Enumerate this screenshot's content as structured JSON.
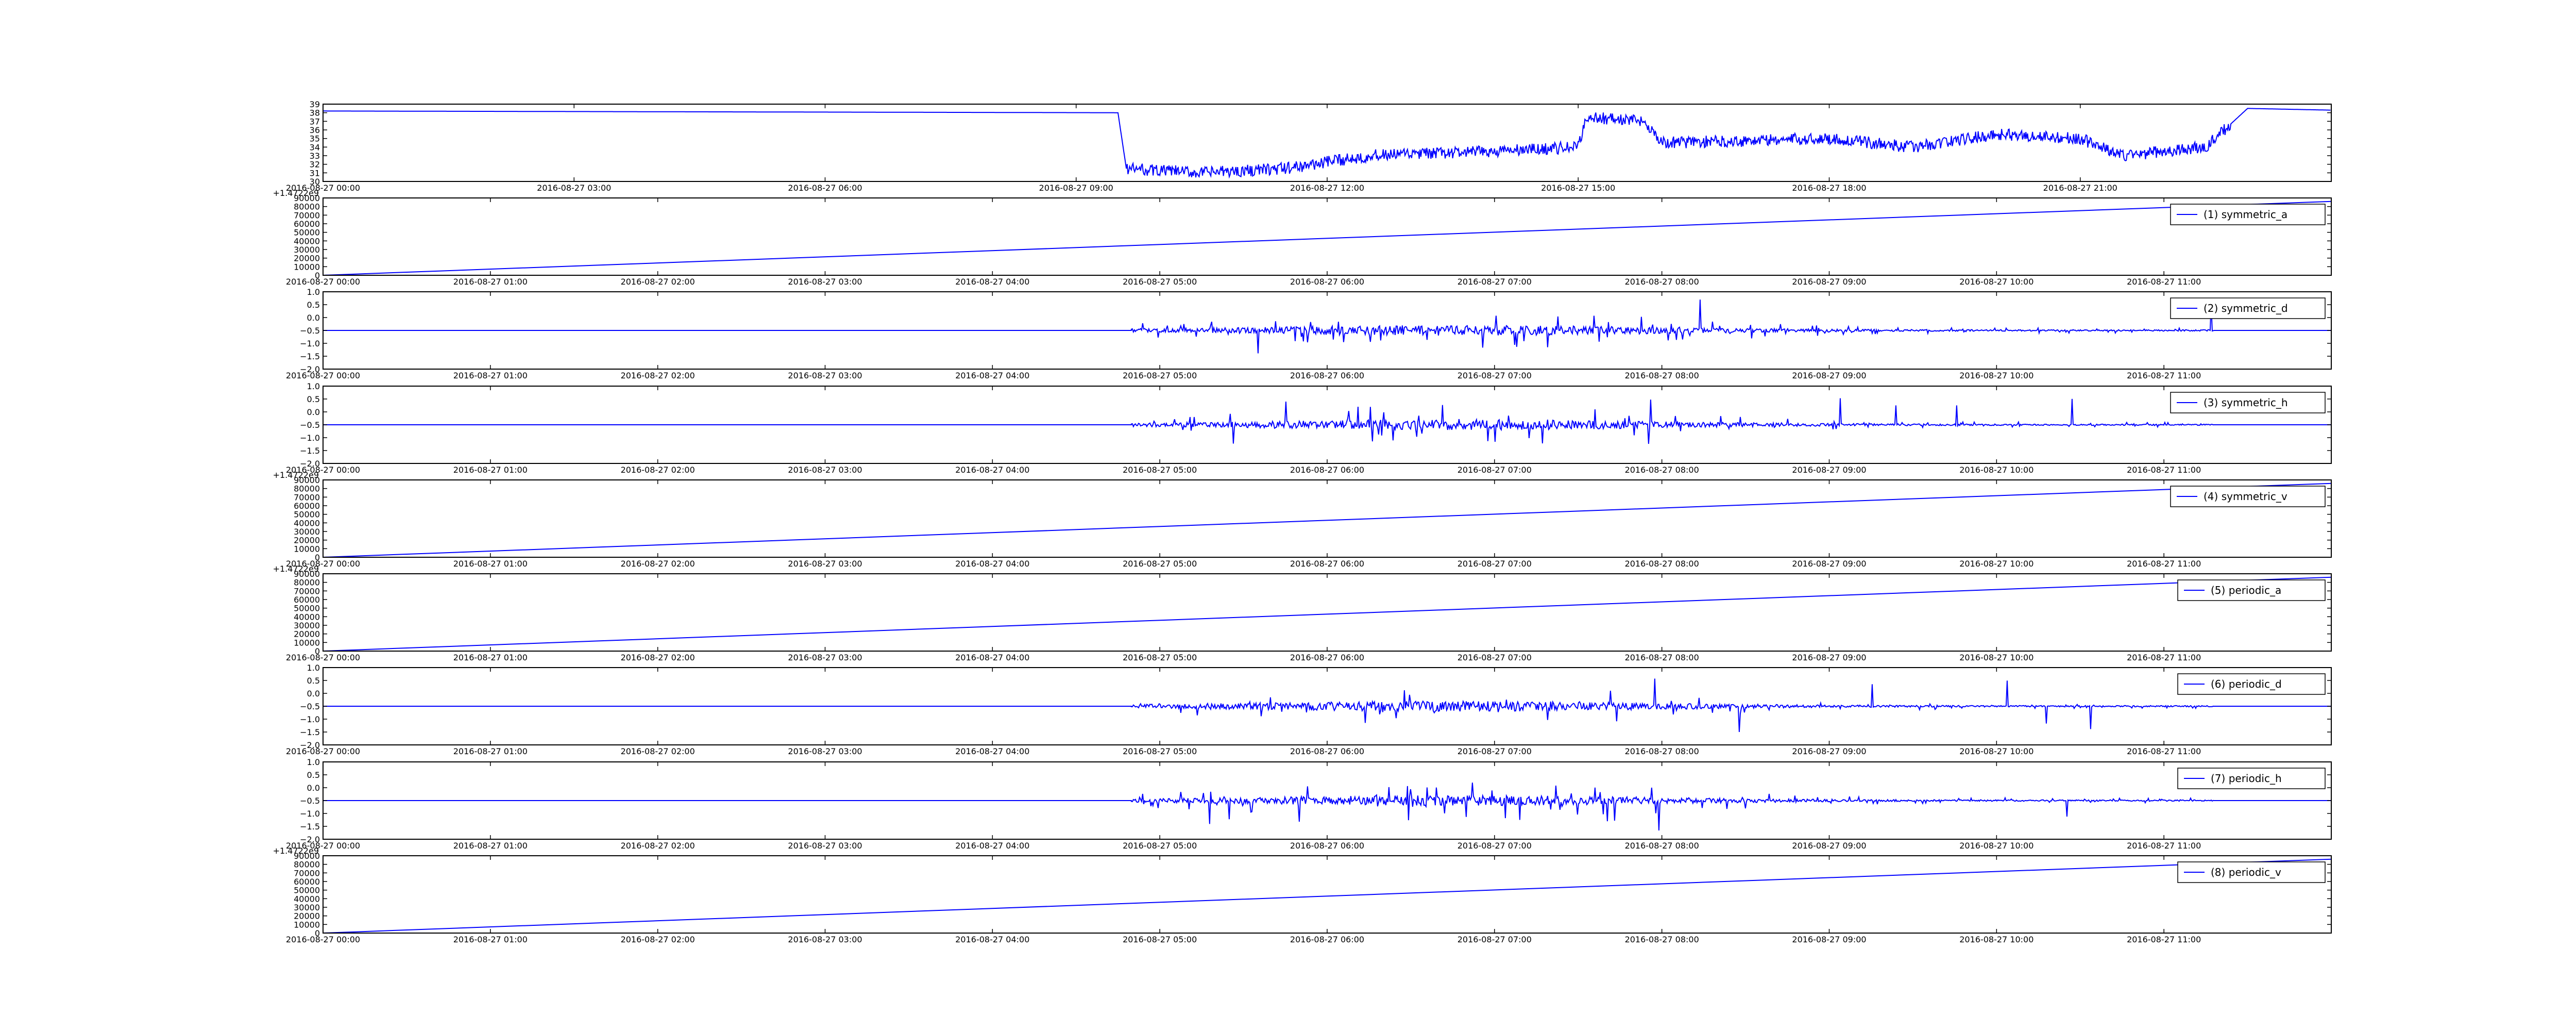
{
  "colors": {
    "line": "#0000ff",
    "axes": "#000000",
    "background": "#ffffff"
  },
  "chart_data": [
    {
      "id": 0,
      "type": "line",
      "x_ticks": [
        "2016-08-27 00:00",
        "2016-08-27 03:00",
        "2016-08-27 06:00",
        "2016-08-27 09:00",
        "2016-08-27 12:00",
        "2016-08-27 15:00",
        "2016-08-27 18:00",
        "2016-08-27 21:00"
      ],
      "x_range_hours": [
        0,
        24
      ],
      "y_ticks": [
        "30",
        "31",
        "32",
        "33",
        "34",
        "35",
        "36",
        "37",
        "38",
        "39"
      ],
      "ylim": [
        30,
        39
      ],
      "y_offset_label": "",
      "series": [
        {
          "name": "",
          "profile": "temperature"
        }
      ]
    },
    {
      "id": 1,
      "type": "line",
      "x_ticks": [
        "2016-08-27 00:00",
        "2016-08-27 01:00",
        "2016-08-27 02:00",
        "2016-08-27 03:00",
        "2016-08-27 04:00",
        "2016-08-27 05:00",
        "2016-08-27 06:00",
        "2016-08-27 07:00",
        "2016-08-27 08:00",
        "2016-08-27 09:00",
        "2016-08-27 10:00",
        "2016-08-27 11:00"
      ],
      "x_range_hours": [
        0,
        12
      ],
      "y_ticks": [
        "0",
        "10000",
        "20000",
        "30000",
        "40000",
        "50000",
        "60000",
        "70000",
        "80000",
        "90000"
      ],
      "ylim": [
        0,
        90000
      ],
      "y_offset_label": "+1.4722e9",
      "series": [
        {
          "name": "(1) symmetric_a",
          "profile": "ramp",
          "start": 0,
          "end": 86000
        }
      ],
      "legend": "top-right"
    },
    {
      "id": 2,
      "type": "line",
      "x_ticks": [
        "2016-08-27 00:00",
        "2016-08-27 01:00",
        "2016-08-27 02:00",
        "2016-08-27 03:00",
        "2016-08-27 04:00",
        "2016-08-27 05:00",
        "2016-08-27 06:00",
        "2016-08-27 07:00",
        "2016-08-27 08:00",
        "2016-08-27 09:00",
        "2016-08-27 10:00",
        "2016-08-27 11:00"
      ],
      "x_range_hours": [
        0,
        12
      ],
      "y_ticks": [
        "−2.0",
        "−1.5",
        "−1.0",
        "−0.5",
        "0.0",
        "0.5",
        "1.0"
      ],
      "ylim": [
        -2.0,
        1.0
      ],
      "y_offset_label": "",
      "series": [
        {
          "name": "(2) symmetric_d",
          "profile": "noise",
          "baseline": -0.5,
          "start_hour": 4.83,
          "end_hour": 11.3
        }
      ],
      "legend": "top-right"
    },
    {
      "id": 3,
      "type": "line",
      "x_ticks": [
        "2016-08-27 00:00",
        "2016-08-27 01:00",
        "2016-08-27 02:00",
        "2016-08-27 03:00",
        "2016-08-27 04:00",
        "2016-08-27 05:00",
        "2016-08-27 06:00",
        "2016-08-27 07:00",
        "2016-08-27 08:00",
        "2016-08-27 09:00",
        "2016-08-27 10:00",
        "2016-08-27 11:00"
      ],
      "x_range_hours": [
        0,
        12
      ],
      "y_ticks": [
        "−2.0",
        "−1.5",
        "−1.0",
        "−0.5",
        "0.0",
        "0.5",
        "1.0"
      ],
      "ylim": [
        -2.0,
        1.0
      ],
      "y_offset_label": "",
      "series": [
        {
          "name": "(3) symmetric_h",
          "profile": "noise",
          "baseline": -0.5,
          "start_hour": 4.83,
          "end_hour": 11.3
        }
      ],
      "legend": "top-right"
    },
    {
      "id": 4,
      "type": "line",
      "x_ticks": [
        "2016-08-27 00:00",
        "2016-08-27 01:00",
        "2016-08-27 02:00",
        "2016-08-27 03:00",
        "2016-08-27 04:00",
        "2016-08-27 05:00",
        "2016-08-27 06:00",
        "2016-08-27 07:00",
        "2016-08-27 08:00",
        "2016-08-27 09:00",
        "2016-08-27 10:00",
        "2016-08-27 11:00"
      ],
      "x_range_hours": [
        0,
        12
      ],
      "y_ticks": [
        "0",
        "10000",
        "20000",
        "30000",
        "40000",
        "50000",
        "60000",
        "70000",
        "80000",
        "90000"
      ],
      "ylim": [
        0,
        90000
      ],
      "y_offset_label": "+1.4722e9",
      "series": [
        {
          "name": "(4) symmetric_v",
          "profile": "ramp",
          "start": 0,
          "end": 86000
        }
      ],
      "legend": "top-right"
    },
    {
      "id": 5,
      "type": "line",
      "x_ticks": [
        "2016-08-27 00:00",
        "2016-08-27 01:00",
        "2016-08-27 02:00",
        "2016-08-27 03:00",
        "2016-08-27 04:00",
        "2016-08-27 05:00",
        "2016-08-27 06:00",
        "2016-08-27 07:00",
        "2016-08-27 08:00",
        "2016-08-27 09:00",
        "2016-08-27 10:00",
        "2016-08-27 11:00"
      ],
      "x_range_hours": [
        0,
        12
      ],
      "y_ticks": [
        "0",
        "10000",
        "20000",
        "30000",
        "40000",
        "50000",
        "60000",
        "70000",
        "80000",
        "90000"
      ],
      "ylim": [
        0,
        90000
      ],
      "y_offset_label": "+1.4722e9",
      "series": [
        {
          "name": "(5) periodic_a",
          "profile": "ramp",
          "start": 0,
          "end": 86000
        }
      ],
      "legend": "top-right"
    },
    {
      "id": 6,
      "type": "line",
      "x_ticks": [
        "2016-08-27 00:00",
        "2016-08-27 01:00",
        "2016-08-27 02:00",
        "2016-08-27 03:00",
        "2016-08-27 04:00",
        "2016-08-27 05:00",
        "2016-08-27 06:00",
        "2016-08-27 07:00",
        "2016-08-27 08:00",
        "2016-08-27 09:00",
        "2016-08-27 10:00",
        "2016-08-27 11:00"
      ],
      "x_range_hours": [
        0,
        12
      ],
      "y_ticks": [
        "−2.0",
        "−1.5",
        "−1.0",
        "−0.5",
        "0.0",
        "0.5",
        "1.0"
      ],
      "ylim": [
        -2.0,
        1.0
      ],
      "y_offset_label": "",
      "series": [
        {
          "name": "(6) periodic_d",
          "profile": "noise",
          "baseline": -0.5,
          "start_hour": 4.83,
          "end_hour": 11.3
        }
      ],
      "legend": "top-right"
    },
    {
      "id": 7,
      "type": "line",
      "x_ticks": [
        "2016-08-27 00:00",
        "2016-08-27 01:00",
        "2016-08-27 02:00",
        "2016-08-27 03:00",
        "2016-08-27 04:00",
        "2016-08-27 05:00",
        "2016-08-27 06:00",
        "2016-08-27 07:00",
        "2016-08-27 08:00",
        "2016-08-27 09:00",
        "2016-08-27 10:00",
        "2016-08-27 11:00"
      ],
      "x_range_hours": [
        0,
        12
      ],
      "y_ticks": [
        "−2.0",
        "−1.5",
        "−1.0",
        "−0.5",
        "0.0",
        "0.5",
        "1.0"
      ],
      "ylim": [
        -2.0,
        1.0
      ],
      "y_offset_label": "",
      "series": [
        {
          "name": "(7) periodic_h",
          "profile": "noise",
          "baseline": -0.5,
          "start_hour": 4.83,
          "end_hour": 11.3
        }
      ],
      "legend": "top-right"
    },
    {
      "id": 8,
      "type": "line",
      "x_ticks": [
        "2016-08-27 00:00",
        "2016-08-27 01:00",
        "2016-08-27 02:00",
        "2016-08-27 03:00",
        "2016-08-27 04:00",
        "2016-08-27 05:00",
        "2016-08-27 06:00",
        "2016-08-27 07:00",
        "2016-08-27 08:00",
        "2016-08-27 09:00",
        "2016-08-27 10:00",
        "2016-08-27 11:00"
      ],
      "x_range_hours": [
        0,
        12
      ],
      "y_ticks": [
        "0",
        "10000",
        "20000",
        "30000",
        "40000",
        "50000",
        "60000",
        "70000",
        "80000",
        "90000"
      ],
      "ylim": [
        0,
        90000
      ],
      "y_offset_label": "+1.4722e9",
      "series": [
        {
          "name": "(8) periodic_v",
          "profile": "ramp",
          "start": 0,
          "end": 86000
        }
      ],
      "legend": "top-right"
    }
  ]
}
